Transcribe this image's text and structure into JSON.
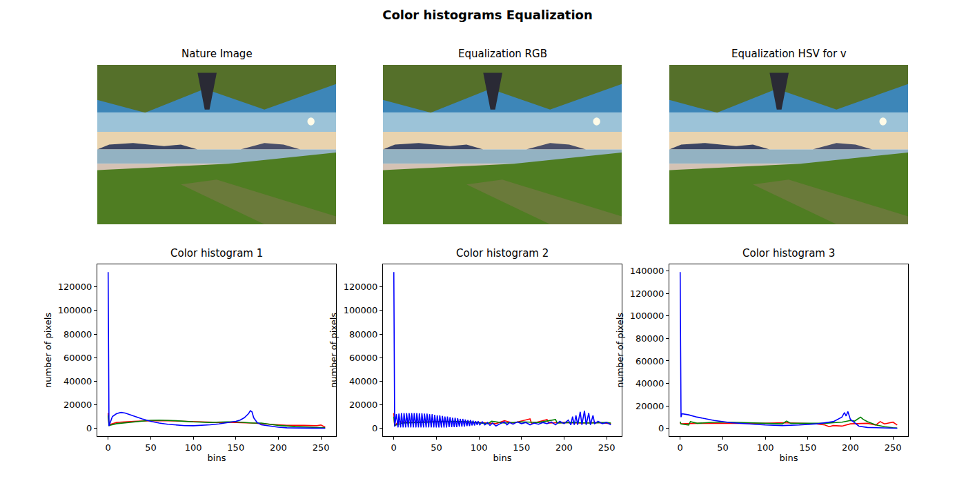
{
  "title": "Color histograms Equalization",
  "chart_data": [
    {
      "type": "image",
      "title": "Nature Image"
    },
    {
      "type": "image",
      "title": "Equalization RGB"
    },
    {
      "type": "image",
      "title": "Equalization HSV for v"
    },
    {
      "type": "line",
      "title": "Color histogram 1",
      "xlabel": "bins",
      "ylabel": "number of pixels",
      "xlim": [
        -12.75,
        267.75
      ],
      "ylim": [
        -6625,
        139125
      ],
      "xticks": [
        0,
        50,
        100,
        150,
        200,
        250
      ],
      "yticks": [
        0,
        20000,
        40000,
        60000,
        80000,
        100000,
        120000
      ],
      "series": [
        {
          "color": "#ff0000",
          "x": [
            0,
            1,
            10,
            30,
            50,
            70,
            90,
            110,
            130,
            150,
            170,
            190,
            210,
            230,
            245,
            250,
            255
          ],
          "values": [
            13000,
            3000,
            5000,
            6000,
            6500,
            6500,
            6000,
            5500,
            5000,
            5000,
            4500,
            3500,
            2500,
            2500,
            2300,
            2800,
            1000
          ]
        },
        {
          "color": "#008000",
          "x": [
            0,
            1,
            10,
            30,
            50,
            60,
            80,
            100,
            120,
            140,
            150,
            170,
            180,
            190,
            200,
            220,
            240,
            255
          ],
          "values": [
            11000,
            2500,
            4000,
            5500,
            6800,
            7000,
            6500,
            5500,
            5000,
            5500,
            5500,
            4500,
            4500,
            3500,
            2500,
            1500,
            1000,
            500
          ]
        },
        {
          "color": "#0000ff",
          "x": [
            0,
            1,
            5,
            10,
            15,
            20,
            30,
            40,
            50,
            60,
            70,
            80,
            90,
            100,
            110,
            120,
            130,
            140,
            150,
            155,
            160,
            165,
            167,
            169,
            171,
            175,
            180,
            190,
            200,
            210,
            220,
            240,
            255
          ],
          "values": [
            132500,
            2000,
            10000,
            12500,
            13500,
            13000,
            10500,
            8000,
            6000,
            4500,
            3500,
            2800,
            2300,
            2200,
            2500,
            3000,
            3800,
            4800,
            6000,
            7000,
            9000,
            12500,
            15000,
            14000,
            9000,
            5000,
            3000,
            2000,
            1000,
            500,
            300,
            200,
            100
          ]
        }
      ]
    },
    {
      "type": "line",
      "title": "Color histogram 2",
      "xlabel": "bins",
      "ylabel": "number of pixels",
      "xlim": [
        -12.75,
        267.75
      ],
      "ylim": [
        -6625,
        139125
      ],
      "xticks": [
        0,
        50,
        100,
        150,
        200,
        250
      ],
      "yticks": [
        0,
        20000,
        40000,
        60000,
        80000,
        100000,
        120000
      ],
      "series": [
        {
          "color": "#ff0000",
          "x": [
            0,
            1,
            5,
            20,
            40,
            60,
            80,
            100,
            120,
            130,
            140,
            160,
            162,
            180,
            182,
            200,
            220,
            240,
            255
          ],
          "values": [
            13000,
            2000,
            5500,
            5000,
            5500,
            6000,
            5500,
            5000,
            4000,
            6500,
            4500,
            8000,
            4000,
            7500,
            4500,
            5000,
            4500,
            5000,
            4000
          ]
        },
        {
          "color": "#008000",
          "x": [
            0,
            1,
            10,
            30,
            50,
            70,
            90,
            110,
            115,
            130,
            150,
            170,
            190,
            192,
            210,
            230,
            250,
            255
          ],
          "values": [
            10000,
            2500,
            4500,
            5000,
            5500,
            6000,
            5500,
            4000,
            6000,
            4500,
            5500,
            5000,
            7500,
            4500,
            5000,
            4500,
            5000,
            4500
          ]
        },
        {
          "color": "#0000ff",
          "x": [
            0,
            1,
            3,
            5,
            6,
            8,
            9,
            11,
            12,
            14,
            15,
            17,
            18,
            20,
            21,
            23,
            24,
            26,
            27,
            29,
            30,
            32,
            33,
            35,
            36,
            38,
            39,
            41,
            42,
            44,
            45,
            47,
            48,
            50,
            51,
            53,
            54,
            56,
            57,
            59,
            60,
            62,
            63,
            65,
            66,
            68,
            69,
            71,
            72,
            74,
            75,
            77,
            78,
            80,
            81,
            83,
            84,
            86,
            87,
            89,
            90,
            92,
            93,
            95,
            96,
            98,
            99,
            101,
            104,
            107,
            110,
            113,
            116,
            120,
            125,
            130,
            133,
            136,
            140,
            145,
            150,
            155,
            160,
            165,
            170,
            175,
            180,
            185,
            190,
            195,
            200,
            205,
            208,
            210,
            212,
            214,
            216,
            219,
            221,
            224,
            226,
            229,
            231,
            234,
            236,
            240,
            245,
            250,
            255
          ],
          "values": [
            132500,
            1500,
            12000,
            800,
            12500,
            800,
            13000,
            800,
            13000,
            800,
            13000,
            800,
            13000,
            800,
            13000,
            800,
            13000,
            800,
            13000,
            800,
            12800,
            800,
            12800,
            800,
            12500,
            800,
            12500,
            800,
            12000,
            800,
            12000,
            800,
            11500,
            800,
            11000,
            800,
            11000,
            800,
            10500,
            800,
            10000,
            800,
            10000,
            1000,
            9500,
            1000,
            9000,
            1000,
            9000,
            1000,
            8500,
            1500,
            8000,
            1500,
            8000,
            1500,
            7500,
            2000,
            7000,
            2000,
            7000,
            2500,
            6500,
            2500,
            6000,
            3000,
            6000,
            3000,
            5500,
            3000,
            5000,
            2500,
            4500,
            2000,
            4000,
            5500,
            3000,
            5000,
            3500,
            5500,
            4000,
            5000,
            3000,
            4500,
            3500,
            5000,
            4000,
            5500,
            3000,
            6000,
            4000,
            7000,
            3000,
            10000,
            3000,
            11000,
            3000,
            14000,
            3000,
            15000,
            3000,
            13000,
            3000,
            11000,
            4000,
            6000,
            4000,
            5000,
            3000
          ]
        }
      ]
    },
    {
      "type": "line",
      "title": "Color histogram 3",
      "xlabel": "bins",
      "ylabel": "number of pixels",
      "xlim": [
        -12.75,
        267.75
      ],
      "ylim": [
        -6950,
        145950
      ],
      "xticks": [
        0,
        50,
        100,
        150,
        200,
        250
      ],
      "yticks": [
        0,
        20000,
        40000,
        60000,
        80000,
        100000,
        120000,
        140000
      ],
      "series": [
        {
          "color": "#ff0000",
          "x": [
            0,
            1,
            20,
            40,
            60,
            80,
            100,
            120,
            140,
            160,
            170,
            175,
            180,
            190,
            200,
            220,
            230,
            235,
            240,
            250,
            255
          ],
          "values": [
            5000,
            4000,
            4500,
            4500,
            4500,
            4500,
            4500,
            5000,
            4500,
            4000,
            3000,
            1500,
            2500,
            2000,
            4000,
            4500,
            3000,
            6000,
            4000,
            5500,
            3000
          ]
        },
        {
          "color": "#008000",
          "x": [
            0,
            1,
            10,
            12,
            20,
            40,
            60,
            80,
            100,
            120,
            125,
            130,
            150,
            170,
            180,
            190,
            200,
            205,
            210,
            212,
            215,
            220,
            230,
            240,
            250,
            255
          ],
          "values": [
            6000,
            4000,
            3000,
            6000,
            4500,
            5500,
            5500,
            5000,
            4500,
            4000,
            6500,
            4500,
            4500,
            4500,
            5000,
            5500,
            7000,
            6500,
            9000,
            10000,
            8000,
            6000,
            3000,
            1500,
            500,
            300
          ]
        },
        {
          "color": "#0000ff",
          "x": [
            0,
            1,
            2,
            10,
            20,
            40,
            60,
            80,
            100,
            120,
            140,
            160,
            180,
            190,
            193,
            195,
            197,
            200,
            210,
            220,
            240,
            255
          ],
          "values": [
            139000,
            10000,
            13000,
            12000,
            10000,
            7000,
            5000,
            4000,
            3000,
            2500,
            3000,
            4000,
            6000,
            10000,
            14000,
            11000,
            15000,
            8000,
            2000,
            800,
            200,
            100
          ]
        }
      ]
    }
  ]
}
